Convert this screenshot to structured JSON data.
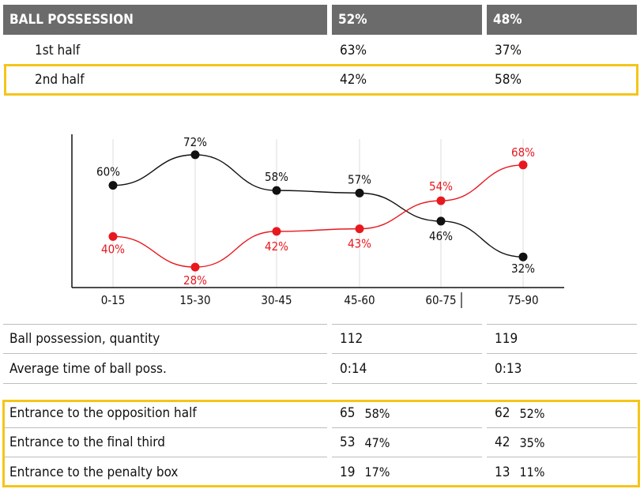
{
  "header": {
    "title": "BALL POSSESSION",
    "team_a": "52%",
    "team_b": "48%"
  },
  "halves": [
    {
      "label": "1st half",
      "team_a": "63%",
      "team_b": "37%"
    },
    {
      "label": "2nd half",
      "team_a": "42%",
      "team_b": "58%"
    }
  ],
  "stats": [
    {
      "label": "Ball possession, quantity",
      "team_a": "112",
      "team_b": "119"
    },
    {
      "label": "Average time of ball poss.",
      "team_a": "0:14",
      "team_b": "0:13"
    }
  ],
  "entrances": [
    {
      "label": "Entrance to the opposition half",
      "team_a": "65",
      "team_a_pct": "58%",
      "team_b": "62",
      "team_b_pct": "52%"
    },
    {
      "label": "Entrance to the final third",
      "team_a": "53",
      "team_a_pct": "47%",
      "team_b": "42",
      "team_b_pct": "35%"
    },
    {
      "label": "Entrance to the penalty box",
      "team_a": "19",
      "team_a_pct": "17%",
      "team_b": "13",
      "team_b_pct": "11%"
    }
  ],
  "colors": {
    "team_a": "#111111",
    "team_b": "#e8181e",
    "highlight": "#f5c518",
    "header_bg": "#6b6b6b"
  },
  "chart_data": {
    "type": "line",
    "categories": [
      "0-15",
      "15-30",
      "30-45",
      "45-60",
      "60-75",
      "75-90"
    ],
    "series": [
      {
        "values": [
          60,
          72,
          58,
          57,
          46,
          32
        ],
        "labels": [
          "60%",
          "72%",
          "58%",
          "57%",
          "46%",
          "32%"
        ],
        "color": "#111111"
      },
      {
        "values": [
          40,
          28,
          42,
          43,
          54,
          68
        ],
        "labels": [
          "40%",
          "28%",
          "42%",
          "43%",
          "54%",
          "68%"
        ],
        "color": "#e8181e"
      }
    ],
    "ylim": [
      20,
      80
    ],
    "grid": "vertical",
    "legend": "none"
  }
}
